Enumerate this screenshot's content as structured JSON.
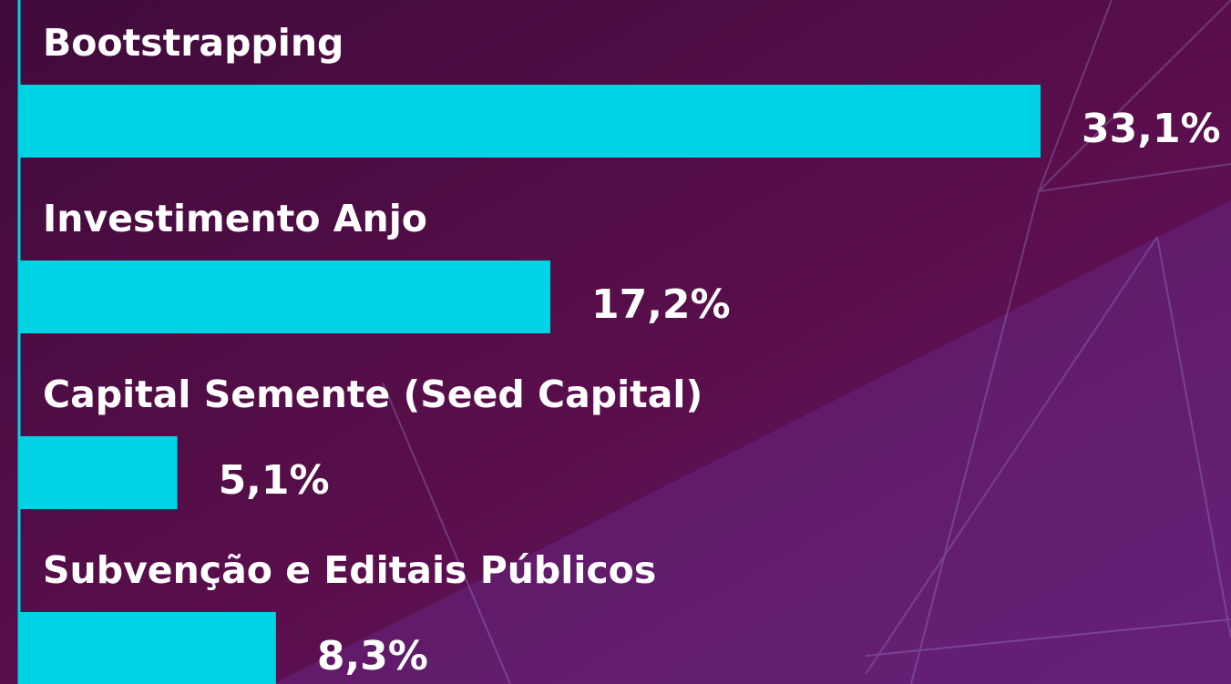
{
  "chart_data": {
    "type": "bar",
    "orientation": "horizontal",
    "categories": [
      "Bootstrapping",
      "Investimento Anjo",
      "Capital Semente (Seed Capital)",
      "Subvenção e Editais Públicos"
    ],
    "values": [
      33.1,
      17.2,
      5.1,
      8.3
    ],
    "value_labels": [
      "33,1%",
      "17,2%",
      "5,1%",
      "8,3%"
    ],
    "color": "#00d4e4"
  }
}
